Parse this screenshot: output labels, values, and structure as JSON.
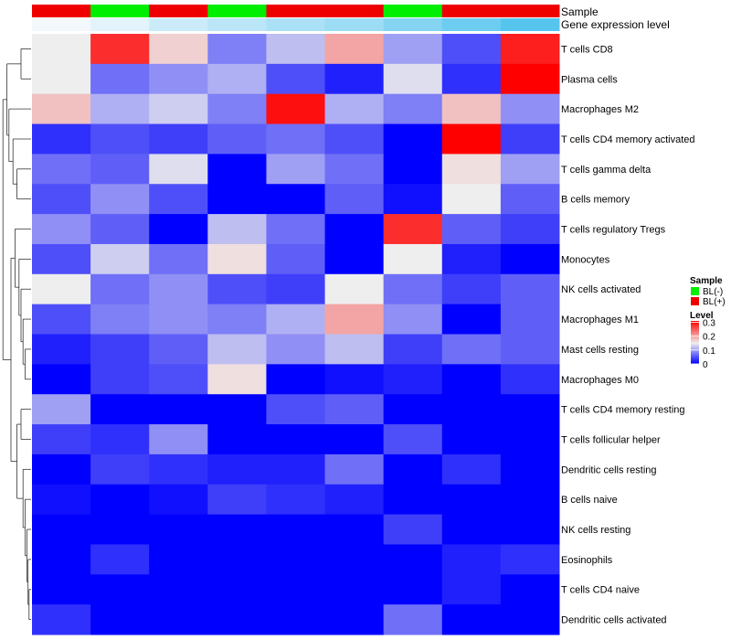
{
  "chart_data": {
    "type": "heatmap",
    "annotation_labels": [
      "Sample",
      "Gene expression level"
    ],
    "sample_groups": [
      "BL(+)",
      "BL(-)",
      "BL(+)",
      "BL(-)",
      "BL(+)",
      "BL(+)",
      "BL(-)",
      "BL(+)",
      "BL(+)"
    ],
    "expression_levels": [
      0.0,
      0.1,
      0.25,
      0.35,
      0.45,
      0.55,
      0.7,
      0.85,
      1.0
    ],
    "rows": [
      "T cells CD8",
      "Plasma cells",
      "Macrophages M2",
      "T cells CD4 memory activated",
      "T cells gamma delta",
      "B cells memory",
      "T cells regulatory  Tregs",
      "Monocytes",
      "NK cells activated",
      "Macrophages M1",
      "Mast cells resting",
      "Macrophages M0",
      "T cells CD4 memory resting",
      "T cells follicular helper",
      "Dendritic cells resting",
      "B cells naive",
      "NK cells resting",
      "Eosinophils",
      "T cells CD4 naive",
      "Dendritic cells activated"
    ],
    "values": [
      [
        0.15,
        0.28,
        0.17,
        0.08,
        0.12,
        0.2,
        0.1,
        0.05,
        0.29
      ],
      [
        0.15,
        0.07,
        0.09,
        0.11,
        0.05,
        0.02,
        0.14,
        0.03,
        0.31
      ],
      [
        0.18,
        0.11,
        0.13,
        0.08,
        0.3,
        0.11,
        0.08,
        0.18,
        0.09
      ],
      [
        0.03,
        0.05,
        0.04,
        0.06,
        0.07,
        0.05,
        0.0,
        0.31,
        0.04
      ],
      [
        0.07,
        0.06,
        0.14,
        0.0,
        0.1,
        0.07,
        0.0,
        0.16,
        0.1
      ],
      [
        0.05,
        0.09,
        0.05,
        0.0,
        0.0,
        0.06,
        0.01,
        0.15,
        0.06
      ],
      [
        0.09,
        0.06,
        0.0,
        0.12,
        0.07,
        0.0,
        0.28,
        0.06,
        0.04
      ],
      [
        0.05,
        0.13,
        0.07,
        0.16,
        0.06,
        0.0,
        0.15,
        0.02,
        0.0
      ],
      [
        0.15,
        0.07,
        0.09,
        0.05,
        0.04,
        0.15,
        0.07,
        0.04,
        0.06
      ],
      [
        0.05,
        0.08,
        0.09,
        0.08,
        0.11,
        0.2,
        0.09,
        0.0,
        0.06
      ],
      [
        0.02,
        0.04,
        0.06,
        0.12,
        0.09,
        0.12,
        0.04,
        0.07,
        0.06
      ],
      [
        0.0,
        0.04,
        0.05,
        0.16,
        0.0,
        0.01,
        0.02,
        0.0,
        0.03
      ],
      [
        0.1,
        0.0,
        0.0,
        0.0,
        0.05,
        0.06,
        0.0,
        0.0,
        0.0
      ],
      [
        0.04,
        0.03,
        0.09,
        0.0,
        0.0,
        0.0,
        0.05,
        0.0,
        0.0
      ],
      [
        0.0,
        0.04,
        0.03,
        0.02,
        0.02,
        0.07,
        0.0,
        0.03,
        0.0
      ],
      [
        0.01,
        0.0,
        0.01,
        0.04,
        0.03,
        0.02,
        0.0,
        0.0,
        0.0
      ],
      [
        0.0,
        0.0,
        0.0,
        0.0,
        0.0,
        0.0,
        0.04,
        0.0,
        0.0
      ],
      [
        0.0,
        0.03,
        0.0,
        0.0,
        0.0,
        0.0,
        0.0,
        0.02,
        0.03
      ],
      [
        0.0,
        0.0,
        0.0,
        0.0,
        0.0,
        0.0,
        0.0,
        0.02,
        0.0
      ],
      [
        0.03,
        0.0,
        0.0,
        0.0,
        0.0,
        0.0,
        0.07,
        0.0,
        0.0
      ]
    ],
    "color_scale": {
      "low": "#0000ff",
      "mid": "#eeeeee",
      "high": "#ff0000",
      "min": 0,
      "mid_value": 0.15,
      "max": 0.31
    },
    "legend": {
      "sample_title": "Sample",
      "sample_entries": [
        {
          "label": "BL(-)",
          "color": "#00ee00"
        },
        {
          "label": "BL(+)",
          "color": "#ee0000"
        }
      ],
      "level_title": "Level",
      "level_ticks": [
        "0.3",
        "0.2",
        "0.1",
        "0"
      ],
      "level_tick_values": [
        0.3,
        0.2,
        0.1,
        0
      ],
      "placement": "right"
    },
    "group_colors": {
      "BL(+)": "#ee0000",
      "BL(-)": "#00ee00"
    },
    "expression_colors": {
      "low": "#f2f8fc",
      "high": "#55c5ee"
    }
  }
}
